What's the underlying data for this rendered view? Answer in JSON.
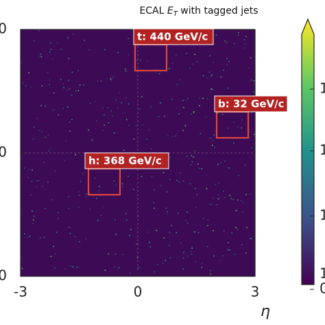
{
  "chart_data": {
    "type": "heatmap",
    "title_parts": [
      "ECAL ",
      "E",
      "T",
      " with tagged jets"
    ],
    "xlabel": "η",
    "xlim": [
      -3,
      3
    ],
    "xticks": [
      -3,
      0,
      3
    ],
    "ylim": [
      -3,
      3
    ],
    "yticks": [
      {
        "value": -3,
        "label": "0"
      },
      0,
      {
        "value": 3,
        "label": "0"
      }
    ],
    "background_color": "#3d0b55",
    "colorbar": {
      "ticks": [
        "1",
        "1",
        "1",
        "1",
        "0"
      ]
    },
    "annotations": [
      "t: 440 GeV/c",
      "b: 32 GeV/c",
      "h: 368 GeV/c"
    ],
    "annotation_color": "#b22222"
  }
}
